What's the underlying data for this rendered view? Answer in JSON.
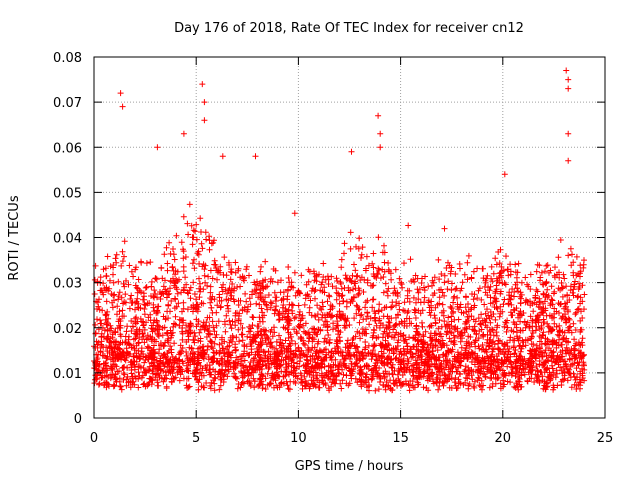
{
  "chart_data": {
    "type": "scatter",
    "title": "Day 176 of 2018, Rate Of TEC Index for receiver cn12",
    "xlabel": "GPS time / hours",
    "ylabel": "ROTI / TECUs",
    "xlim": [
      0,
      25
    ],
    "ylim": [
      0,
      0.08
    ],
    "xticks": [
      0,
      5,
      10,
      15,
      20,
      25
    ],
    "xtick_labels": [
      "0",
      "5",
      "10",
      "15",
      "20",
      "25"
    ],
    "yticks": [
      0,
      0.01,
      0.02,
      0.03,
      0.04,
      0.05,
      0.06,
      0.07,
      0.08
    ],
    "ytick_labels": [
      "0",
      "0.01",
      "0.02",
      "0.03",
      "0.04",
      "0.05",
      "0.06",
      "0.07",
      "0.08"
    ],
    "grid": true,
    "marker": "+",
    "series": [
      {
        "name": "ROTI",
        "color": "#ff0000",
        "x_range": [
          0,
          24
        ],
        "typical_range": [
          0.005,
          0.035
        ],
        "peaks": [
          {
            "x": 1.3,
            "y": 0.072
          },
          {
            "x": 1.4,
            "y": 0.069
          },
          {
            "x": 3.1,
            "y": 0.06
          },
          {
            "x": 4.4,
            "y": 0.063
          },
          {
            "x": 5.3,
            "y": 0.074
          },
          {
            "x": 5.4,
            "y": 0.07
          },
          {
            "x": 5.4,
            "y": 0.066
          },
          {
            "x": 6.3,
            "y": 0.058
          },
          {
            "x": 7.9,
            "y": 0.058
          },
          {
            "x": 12.6,
            "y": 0.059
          },
          {
            "x": 13.9,
            "y": 0.067
          },
          {
            "x": 14.0,
            "y": 0.063
          },
          {
            "x": 14.0,
            "y": 0.06
          },
          {
            "x": 20.1,
            "y": 0.054
          },
          {
            "x": 23.1,
            "y": 0.077
          },
          {
            "x": 23.2,
            "y": 0.075
          },
          {
            "x": 23.2,
            "y": 0.073
          },
          {
            "x": 23.2,
            "y": 0.063
          },
          {
            "x": 23.2,
            "y": 0.057
          }
        ]
      }
    ]
  }
}
